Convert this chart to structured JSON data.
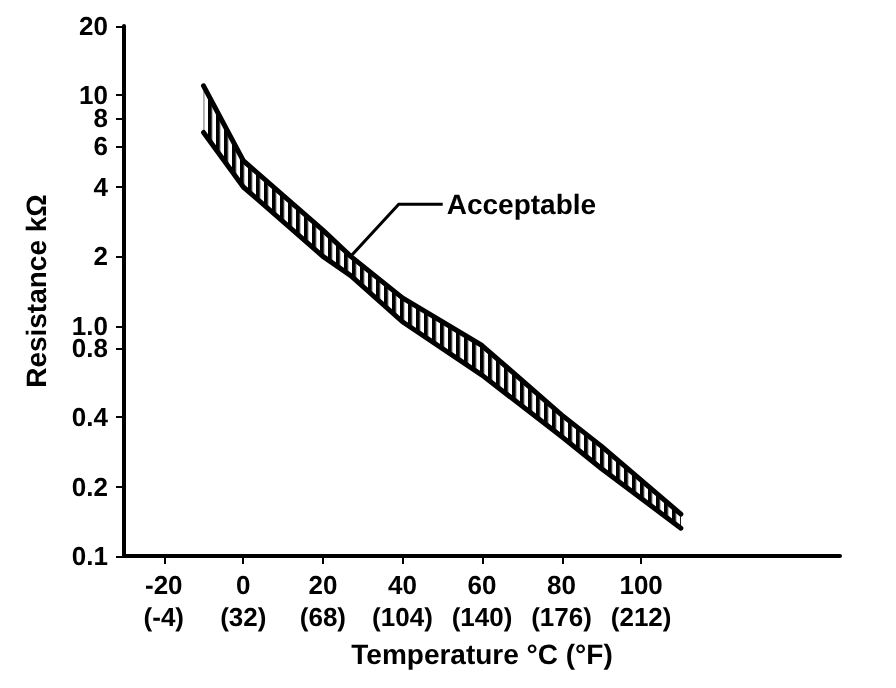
{
  "chart_data": {
    "type": "line",
    "xlabel": "Temperature °C (°F)",
    "ylabel": "Resistance kΩ",
    "x": [
      -10,
      0,
      20,
      27,
      40,
      60,
      80,
      90,
      110
    ],
    "series": [
      {
        "color": "#000000",
        "values": [
          11,
          5.2,
          2.6,
          2.0,
          1.32,
          0.82,
          0.41,
          0.3,
          0.152
        ],
        "upper": [
          11,
          5.2,
          2.6,
          2.0,
          1.32,
          0.82,
          0.41,
          0.3,
          0.152
        ],
        "lower": [
          6.9,
          4.0,
          2.0,
          1.65,
          1.04,
          0.61,
          0.33,
          0.24,
          0.132
        ]
      },
      {
        "color": "#000000",
        "values": [
          6.9,
          4.0,
          2.0,
          1.65,
          1.04,
          0.61,
          0.33,
          0.24,
          0.132
        ]
      }
    ],
    "annotations": [
      {
        "text": "Acceptable",
        "x": 27,
        "y": 2.0
      }
    ],
    "log": "y",
    "grid": false,
    "marker": "none",
    "line_style": "solid",
    "xlim": [
      -30,
      150
    ],
    "xticks": [
      -20,
      0,
      20,
      40,
      60,
      80,
      100
    ],
    "x2lim": [
      -22,
      302
    ],
    "x2ticks": [
      {
        "value": -4,
        "label": "(-4)"
      },
      {
        "value": 32,
        "label": "(32)"
      },
      {
        "value": 68,
        "label": "(68)"
      },
      {
        "value": 104,
        "label": "(104)"
      },
      {
        "value": 140,
        "label": "(140)"
      },
      {
        "value": 176,
        "label": "(176)"
      },
      {
        "value": 212,
        "label": "(212)"
      }
    ],
    "ylim": [
      0.1,
      20
    ],
    "yticks": [
      0.1,
      0.2,
      0.4,
      {
        "value": 0.8,
        "label": "0.8"
      },
      {
        "value": 1.0,
        "label": "1.0"
      },
      2,
      4,
      6,
      8,
      10,
      20
    ]
  }
}
